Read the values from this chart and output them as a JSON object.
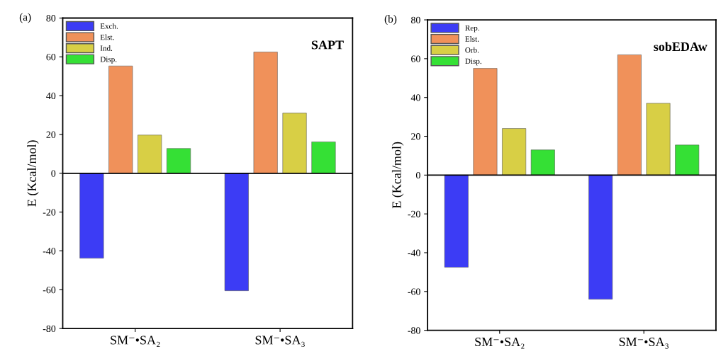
{
  "chart_data": [
    {
      "type": "bar",
      "ylabel": "E (Kcal/mol)",
      "categories": [
        "SM⁻•SA₂",
        "SM⁻•SA₃"
      ],
      "series": [
        {
          "name": "Exch.",
          "color": "#3c3cf5",
          "values": [
            -43.8,
            -60.5
          ]
        },
        {
          "name": "Elst.",
          "color": "#f0915a",
          "values": [
            55.3,
            62.5
          ]
        },
        {
          "name": "Ind.",
          "color": "#d8cf45",
          "values": [
            19.7,
            31
          ]
        },
        {
          "name": "Disp.",
          "color": "#35e035",
          "values": [
            12.8,
            16.2
          ]
        }
      ],
      "ylim": [
        -80,
        80
      ],
      "yticks": [
        -80,
        -60,
        -40,
        -20,
        0,
        20,
        40,
        60,
        80
      ],
      "legend": "top left",
      "annotations": [
        "(a)",
        "SAPT"
      ]
    },
    {
      "type": "bar",
      "ylabel": "E (Kcal/mol)",
      "categories": [
        "SM⁻•SA₂",
        "SM⁻•SA₃"
      ],
      "series": [
        {
          "name": "Rep.",
          "color": "#3c3cf5",
          "values": [
            -47.5,
            -64
          ]
        },
        {
          "name": "Elst.",
          "color": "#f0915a",
          "values": [
            55,
            62
          ]
        },
        {
          "name": "Orb.",
          "color": "#d8cf45",
          "values": [
            24,
            37
          ]
        },
        {
          "name": "Disp.",
          "color": "#35e035",
          "values": [
            13,
            15.5
          ]
        }
      ],
      "ylim": [
        -80,
        80
      ],
      "yticks": [
        -80,
        -60,
        -40,
        -20,
        0,
        20,
        40,
        60,
        80
      ],
      "legend": "top left",
      "annotations": [
        "(b)",
        "sobEDAw"
      ]
    }
  ]
}
